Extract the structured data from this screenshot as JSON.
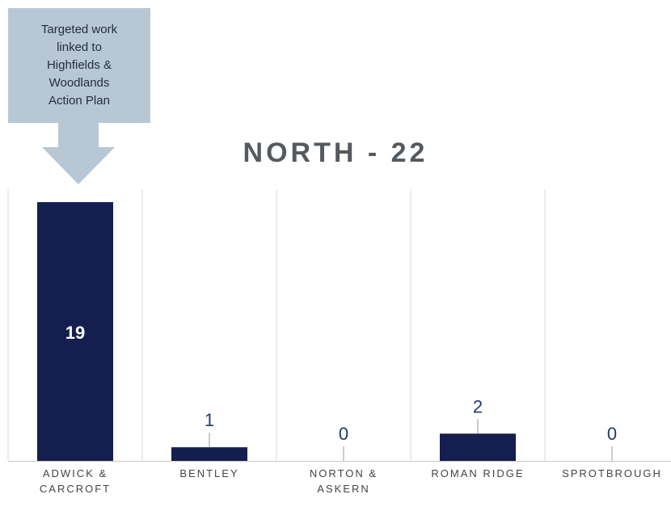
{
  "callout": {
    "text": "Targeted work\nlinked to\nHighfields &\nWoodlands\nAction Plan",
    "color": "#b7c7d4"
  },
  "chart_data": {
    "type": "bar",
    "title": "NORTH - 22",
    "categories": [
      "ADWICK &\nCARCROFT",
      "BENTLEY",
      "NORTON &\nASKERN",
      "ROMAN RIDGE",
      "SPROTBROUGH"
    ],
    "values": [
      19,
      1,
      0,
      2,
      0
    ],
    "ylim": [
      0,
      19
    ],
    "grid": "vertical",
    "bar_color": "#141e4f"
  }
}
